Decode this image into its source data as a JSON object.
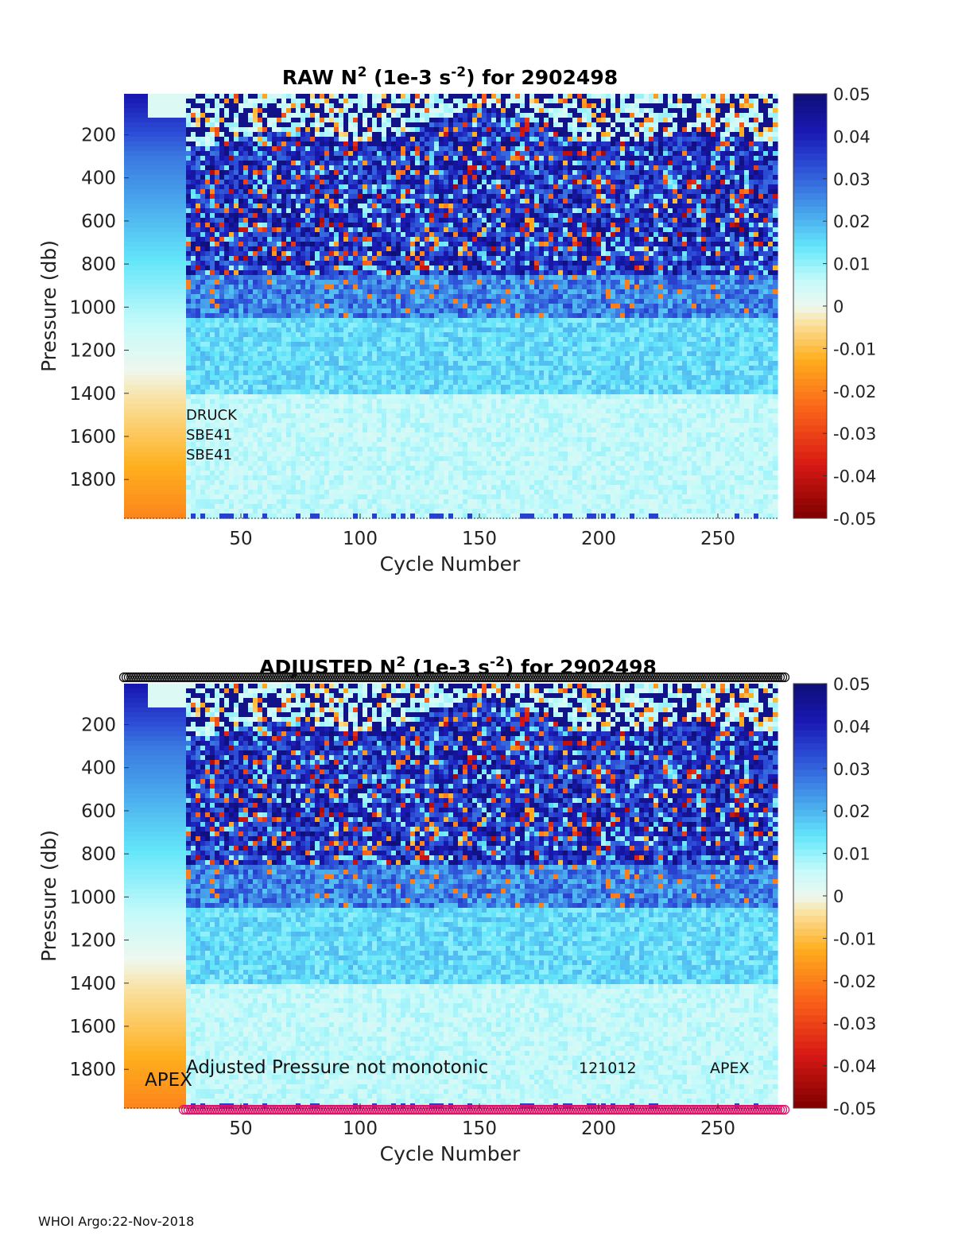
{
  "footer": "WHOI Argo:22-Nov-2018",
  "chart_data": [
    {
      "type": "heatmap",
      "title_prefix": "RAW N",
      "title_sup1": "2",
      "title_mid": " (1e-3 s",
      "title_sup2": "-2",
      "title_suffix": ") for 2902498",
      "xlabel": "Cycle Number",
      "ylabel": "Pressure (db)",
      "xlim": [
        1,
        275
      ],
      "ylim": [
        1980,
        10
      ],
      "xticks": [
        50,
        100,
        150,
        200,
        250
      ],
      "xtick_labels": [
        "50",
        "100",
        "150",
        "200",
        "250"
      ],
      "yticks": [
        200,
        400,
        600,
        800,
        1000,
        1200,
        1400,
        1600,
        1800
      ],
      "ytick_labels": [
        "200",
        "400",
        "600",
        "800",
        "1000",
        "1200",
        "1400",
        "1600",
        "1800"
      ],
      "colorbar": {
        "range": [
          -0.05,
          0.05
        ],
        "ticks": [
          0.05,
          0.04,
          0.03,
          0.02,
          0.01,
          0,
          -0.01,
          -0.02,
          -0.03,
          -0.04,
          -0.05
        ],
        "tick_labels": [
          "0.05",
          "0.04",
          "0.03",
          "0.02",
          "0.01",
          "0",
          "-0.01",
          "-0.02",
          "-0.03",
          "-0.04",
          "-0.05"
        ],
        "colormap": "jet-diverging"
      },
      "annotations": [
        "DRUCK",
        "SBE41",
        "SBE41"
      ]
    },
    {
      "type": "heatmap",
      "title_prefix": "ADJUSTED N",
      "title_sup1": "2",
      "title_mid": " (1e-3 s",
      "title_sup2": "-2",
      "title_suffix": ") for 2902498",
      "xlabel": "Cycle Number",
      "ylabel": "Pressure (db)",
      "xlim": [
        1,
        275
      ],
      "ylim": [
        1980,
        10
      ],
      "xticks": [
        50,
        100,
        150,
        200,
        250
      ],
      "xtick_labels": [
        "50",
        "100",
        "150",
        "200",
        "250"
      ],
      "yticks": [
        200,
        400,
        600,
        800,
        1000,
        1200,
        1400,
        1600,
        1800
      ],
      "ytick_labels": [
        "200",
        "400",
        "600",
        "800",
        "1000",
        "1200",
        "1400",
        "1600",
        "1800"
      ],
      "colorbar": {
        "range": [
          -0.05,
          0.05
        ],
        "ticks": [
          0.05,
          0.04,
          0.03,
          0.02,
          0.01,
          0,
          -0.01,
          -0.02,
          -0.03,
          -0.04,
          -0.05
        ],
        "tick_labels": [
          "0.05",
          "0.04",
          "0.03",
          "0.02",
          "0.01",
          "0",
          "-0.01",
          "-0.02",
          "-0.03",
          "-0.04",
          "-0.05"
        ],
        "colormap": "jet-diverging"
      },
      "annotations": [
        "APEX",
        "Adjusted Pressure not monotonic",
        "121012",
        "APEX"
      ],
      "marker_rows": [
        {
          "name": "top-markers",
          "color": "#111111",
          "x_range": [
            1,
            278
          ]
        },
        {
          "name": "bottom-markers",
          "color": "#e0106a",
          "x_range": [
            26,
            278
          ]
        }
      ]
    }
  ]
}
